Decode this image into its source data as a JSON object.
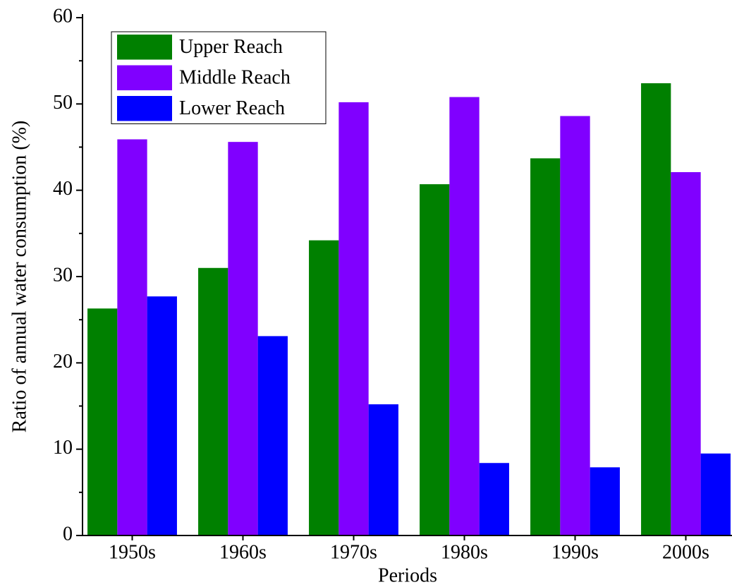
{
  "chart_data": {
    "type": "bar",
    "x_label": "Periods",
    "y_label": "Ratio of annual water consumption (%)",
    "categories": [
      "1950s",
      "1960s",
      "1970s",
      "1980s",
      "1990s",
      "2000s"
    ],
    "series": [
      {
        "name": "Upper Reach",
        "color": "#008000",
        "values": [
          26.3,
          31.0,
          34.2,
          40.7,
          43.7,
          52.4
        ]
      },
      {
        "name": "Middle Reach",
        "color": "#8000ff",
        "values": [
          45.9,
          45.6,
          50.2,
          50.8,
          48.6,
          42.1
        ]
      },
      {
        "name": "Lower Reach",
        "color": "#0000ff",
        "values": [
          27.7,
          23.1,
          15.2,
          8.4,
          7.9,
          9.5
        ]
      }
    ],
    "ylim": [
      0,
      60
    ],
    "yticks": [
      0,
      10,
      20,
      30,
      40,
      50,
      60
    ],
    "legend": "upper-left"
  }
}
